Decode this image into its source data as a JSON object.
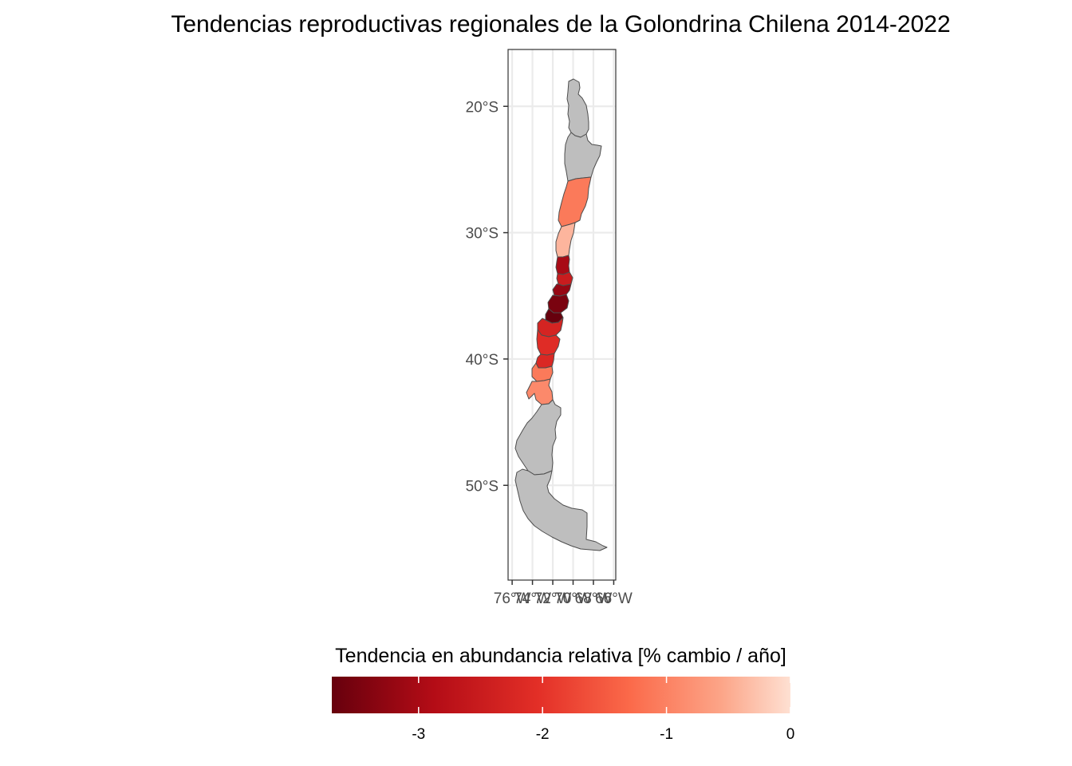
{
  "chart_data": {
    "type": "choropleth",
    "title": "Tendencias reproductivas regionales de la Golondrina Chilena 2014-2022",
    "lat_ticks": [
      {
        "value": -20,
        "label": "20°S"
      },
      {
        "value": -30,
        "label": "30°S"
      },
      {
        "value": -40,
        "label": "40°S"
      },
      {
        "value": -50,
        "label": "50°S"
      }
    ],
    "lon_ticks": [
      {
        "value": -76,
        "label": "76°W"
      },
      {
        "value": -74,
        "label": "74°W"
      },
      {
        "value": -72,
        "label": "72°W"
      },
      {
        "value": -70,
        "label": "70°W"
      },
      {
        "value": -68,
        "label": "68°W"
      },
      {
        "value": -66,
        "label": "66°W"
      }
    ],
    "xlim": [
      -76.4,
      -65.8
    ],
    "ylim": [
      -57.5,
      -15.5
    ],
    "grid": true,
    "legend": {
      "title": "Tendencia en abundancia relativa [% cambio / año]",
      "position": "bottom",
      "range": [
        -3.7,
        0
      ],
      "ticks": [
        {
          "value": -3,
          "label": "-3"
        },
        {
          "value": -2,
          "label": "-2"
        },
        {
          "value": -1,
          "label": "-1"
        },
        {
          "value": 0,
          "label": "0"
        }
      ],
      "low_color": "#67000d",
      "mid_colors": [
        "#a50f15",
        "#cb181d",
        "#ef3b2c",
        "#fb6a4a",
        "#fc9272"
      ],
      "high_color": "#fee0d2"
    },
    "no_data_color": "#bebebe",
    "regions": [
      {
        "name": "region-arica-tarapaca",
        "trend": null
      },
      {
        "name": "region-antofagasta",
        "trend": null
      },
      {
        "name": "region-atacama",
        "trend": -1.1
      },
      {
        "name": "region-coquimbo",
        "trend": -0.4
      },
      {
        "name": "region-valparaiso",
        "trend": -3.0
      },
      {
        "name": "region-metropolitana",
        "trend": -2.5
      },
      {
        "name": "region-ohiggins",
        "trend": -3.2
      },
      {
        "name": "region-maule",
        "trend": -3.5
      },
      {
        "name": "region-nuble",
        "trend": -3.7
      },
      {
        "name": "region-biobio",
        "trend": -2.3
      },
      {
        "name": "region-araucania",
        "trend": -2.1
      },
      {
        "name": "region-los-rios",
        "trend": -2.2
      },
      {
        "name": "region-los-lagos-north",
        "trend": -1.1
      },
      {
        "name": "region-los-lagos-south",
        "trend": -0.9
      },
      {
        "name": "region-aysen",
        "trend": null
      },
      {
        "name": "region-magallanes",
        "trend": null
      }
    ]
  }
}
